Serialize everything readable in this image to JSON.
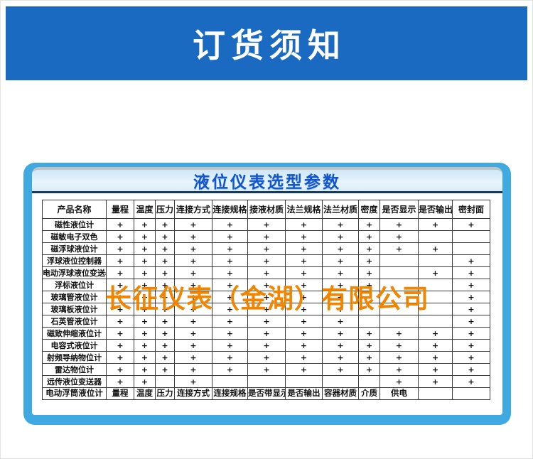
{
  "banner": {
    "title": "订货须知"
  },
  "panel": {
    "title": "液位仪表选型参数"
  },
  "watermark": {
    "text": "长征仪表（金湖）有限公司"
  },
  "colors": {
    "banner_blue": "#1b6ac1",
    "panel_border_blue": "#3fa9e2",
    "titlebar_light_blue": "#cde7f8",
    "title_text_blue": "#1456c9",
    "divider_navy": "#16395e",
    "watermark_orange": "#f28500",
    "table_border": "#3a3a3a"
  },
  "table": {
    "columns": [
      "产品名称",
      "量程",
      "温度",
      "压力",
      "连接方式",
      "连接规格",
      "接液材质",
      "法兰规格",
      "法兰材质",
      "密度",
      "是否显示",
      "是否输出",
      "密封面"
    ],
    "plus_symbol": "+",
    "rows": [
      {
        "name": "磁性液位计",
        "cells": [
          "+",
          "+",
          "+",
          "+",
          "+",
          "+",
          "+",
          "+",
          "+",
          "+",
          "+",
          "+"
        ]
      },
      {
        "name": "磁敏电子双色",
        "cells": [
          "+",
          "+",
          "+",
          "+",
          "+",
          "+",
          "+",
          "+",
          "+",
          "+",
          "",
          ""
        ]
      },
      {
        "name": "磁浮球液位计",
        "cells": [
          "+",
          "+",
          "+",
          "+",
          "+",
          "+",
          "+",
          "+",
          "+",
          "+",
          "+",
          ""
        ]
      },
      {
        "name": "浮球液位控制器",
        "cells": [
          "+",
          "+",
          "+",
          "+",
          "+",
          "+",
          "+",
          "+",
          "+",
          "",
          "",
          "+"
        ]
      },
      {
        "name": "电动浮球液位变送器",
        "cells": [
          "+",
          "+",
          "+",
          "+",
          "+",
          "+",
          "+",
          "+",
          "+",
          "",
          "+",
          "+"
        ]
      },
      {
        "name": "浮标液位计",
        "cells": [
          "+",
          "+",
          "+",
          "+",
          "+",
          "+",
          "+",
          "+",
          "+",
          "",
          "",
          "+"
        ]
      },
      {
        "name": "玻璃管液位计",
        "cells": [
          "+",
          "+",
          "+",
          "+",
          "+",
          "+",
          "+",
          "+",
          "",
          "",
          "",
          "+"
        ]
      },
      {
        "name": "玻璃板液位计",
        "cells": [
          "+",
          "+",
          "+",
          "+",
          "+",
          "+",
          "+",
          "+",
          "",
          "",
          "",
          "+"
        ]
      },
      {
        "name": "石英管液位计",
        "cells": [
          "+",
          "+",
          "+",
          "+",
          "+",
          "+",
          "+",
          "+",
          "",
          "",
          "",
          "+"
        ]
      },
      {
        "name": "磁致伸缩液位计",
        "cells": [
          "+",
          "+",
          "+",
          "+",
          "+",
          "+",
          "+",
          "+",
          "+",
          "+",
          "+",
          "+"
        ]
      },
      {
        "name": "电容式液位计",
        "cells": [
          "+",
          "+",
          "+",
          "+",
          "+",
          "+",
          "+",
          "+",
          "+",
          "+",
          "+",
          "+"
        ]
      },
      {
        "name": "射频导纳物位计",
        "cells": [
          "+",
          "+",
          "+",
          "+",
          "+",
          "+",
          "+",
          "+",
          "+",
          "+",
          "+",
          "+"
        ]
      },
      {
        "name": "雷达物位计",
        "cells": [
          "+",
          "+",
          "+",
          "+",
          "+",
          "+",
          "+",
          "+",
          "+",
          "+",
          "+",
          "+"
        ]
      },
      {
        "name": "远传液位变送器",
        "cells": [
          "+",
          "+",
          "",
          "+",
          "",
          "",
          "",
          "",
          "",
          "+",
          "+",
          "+"
        ]
      }
    ],
    "special_row": {
      "name": "电动浮筒液位计",
      "cells": [
        "量程",
        "温度",
        "压力",
        "连接方式",
        "连接规格",
        "是否带显示",
        "是否输出",
        "容器材质",
        "介质",
        "供电",
        "",
        ""
      ]
    }
  }
}
